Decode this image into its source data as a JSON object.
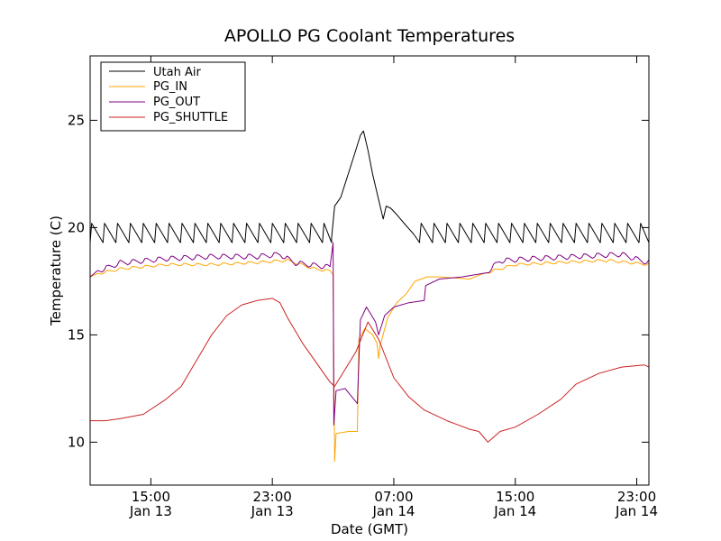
{
  "chart_data": {
    "type": "line",
    "title": "APOLLO PG Coolant Temperatures",
    "xlabel": "Date (GMT)",
    "ylabel": "Temperature (C)",
    "x_unit": "hours since 2014-01-13 11:00 GMT",
    "xlim": [
      0,
      36.8
    ],
    "ylim": [
      8,
      28
    ],
    "grid": false,
    "legend_position": "top-left",
    "y_ticks": [
      10,
      15,
      20,
      25
    ],
    "x_ticks": [
      {
        "x": 4,
        "time": "15:00",
        "date": "Jan 13"
      },
      {
        "x": 12,
        "time": "23:00",
        "date": "Jan 13"
      },
      {
        "x": 20,
        "time": "07:00",
        "date": "Jan 14"
      },
      {
        "x": 28,
        "time": "15:00",
        "date": "Jan 14"
      },
      {
        "x": 36,
        "time": "23:00",
        "date": "Jan 14"
      }
    ],
    "series": [
      {
        "name": "Utah Air",
        "color": "#000000",
        "sawtooth": {
          "x_ranges": [
            [
              0,
              15.9
            ],
            [
              21.7,
              36.8
            ]
          ],
          "period": 0.85,
          "low": 19.3,
          "high": 20.2
        },
        "points": [
          [
            15.9,
            19.5
          ],
          [
            16.1,
            21.0
          ],
          [
            16.5,
            21.4
          ],
          [
            17.0,
            22.5
          ],
          [
            17.4,
            23.4
          ],
          [
            17.8,
            24.3
          ],
          [
            18.0,
            24.5
          ],
          [
            18.3,
            23.6
          ],
          [
            18.6,
            22.5
          ],
          [
            19.0,
            21.3
          ],
          [
            19.3,
            20.4
          ],
          [
            19.5,
            21.0
          ],
          [
            19.8,
            20.9
          ],
          [
            20.2,
            20.6
          ],
          [
            20.8,
            20.1
          ],
          [
            21.3,
            19.7
          ],
          [
            21.7,
            19.4
          ]
        ]
      },
      {
        "name": "PG_IN",
        "color": "#ffa500",
        "wavy": {
          "x_ranges": [
            [
              0.5,
              15.9
            ],
            [
              26.0,
              36.8
            ]
          ],
          "period": 0.85,
          "amplitude": 0.15
        },
        "points": [
          [
            0,
            17.7
          ],
          [
            2,
            18.0
          ],
          [
            5,
            18.2
          ],
          [
            8,
            18.2
          ],
          [
            11,
            18.3
          ],
          [
            13,
            18.4
          ],
          [
            14.8,
            18.0
          ],
          [
            15.8,
            17.9
          ],
          [
            16.0,
            17.8
          ],
          [
            16.1,
            9.1
          ],
          [
            16.2,
            10.4
          ],
          [
            17.0,
            10.5
          ],
          [
            17.6,
            10.5
          ],
          [
            17.7,
            14.8
          ],
          [
            18.1,
            15.3
          ],
          [
            18.6,
            15.0
          ],
          [
            18.9,
            14.6
          ],
          [
            19.0,
            13.9
          ],
          [
            19.1,
            14.5
          ],
          [
            19.6,
            15.8
          ],
          [
            20.2,
            16.5
          ],
          [
            20.8,
            16.9
          ],
          [
            21.4,
            17.5
          ],
          [
            22.2,
            17.7
          ],
          [
            23.0,
            17.7
          ],
          [
            25.0,
            17.6
          ],
          [
            26.0,
            17.8
          ],
          [
            28,
            18.2
          ],
          [
            31,
            18.3
          ],
          [
            34,
            18.4
          ],
          [
            36.8,
            18.2
          ]
        ]
      },
      {
        "name": "PG_OUT",
        "color": "#800080",
        "wavy": {
          "x_ranges": [
            [
              0.5,
              15.9
            ],
            [
              26.0,
              36.8
            ]
          ],
          "period": 0.85,
          "amplitude": 0.3
        },
        "points": [
          [
            0,
            17.7
          ],
          [
            2,
            18.2
          ],
          [
            5,
            18.4
          ],
          [
            8,
            18.5
          ],
          [
            11,
            18.5
          ],
          [
            12.5,
            18.6
          ],
          [
            13.5,
            18.2
          ],
          [
            15.8,
            18.0
          ],
          [
            16.0,
            19.3
          ],
          [
            16.05,
            10.8
          ],
          [
            16.2,
            12.4
          ],
          [
            16.8,
            12.5
          ],
          [
            17.6,
            11.8
          ],
          [
            17.8,
            15.7
          ],
          [
            18.2,
            16.3
          ],
          [
            18.8,
            15.6
          ],
          [
            19.0,
            15.0
          ],
          [
            19.4,
            15.9
          ],
          [
            20.0,
            16.3
          ],
          [
            21.0,
            16.5
          ],
          [
            22.0,
            16.6
          ],
          [
            22.1,
            17.3
          ],
          [
            23.0,
            17.6
          ],
          [
            24.5,
            17.7
          ],
          [
            26.0,
            17.7
          ],
          [
            27.0,
            18.3
          ],
          [
            29,
            18.4
          ],
          [
            32,
            18.5
          ],
          [
            35,
            18.6
          ],
          [
            36.8,
            18.2
          ]
        ]
      },
      {
        "name": "PG_SHUTTLE",
        "color": "#cc2222",
        "points": [
          [
            0,
            11.0
          ],
          [
            1,
            11.0
          ],
          [
            2,
            11.1
          ],
          [
            3.5,
            11.3
          ],
          [
            5,
            12.0
          ],
          [
            6,
            12.6
          ],
          [
            7,
            13.8
          ],
          [
            8,
            15.0
          ],
          [
            9,
            15.9
          ],
          [
            10,
            16.4
          ],
          [
            11,
            16.6
          ],
          [
            12,
            16.7
          ],
          [
            12.5,
            16.5
          ],
          [
            13,
            15.8
          ],
          [
            14,
            14.6
          ],
          [
            15,
            13.6
          ],
          [
            15.8,
            12.8
          ],
          [
            16.1,
            12.6
          ],
          [
            17.5,
            14.2
          ],
          [
            18.3,
            15.6
          ],
          [
            19.0,
            14.8
          ],
          [
            20.0,
            13.0
          ],
          [
            21.0,
            12.1
          ],
          [
            22.0,
            11.5
          ],
          [
            23.5,
            11.0
          ],
          [
            25.0,
            10.6
          ],
          [
            25.6,
            10.5
          ],
          [
            26.2,
            10.0
          ],
          [
            27.0,
            10.5
          ],
          [
            28.0,
            10.7
          ],
          [
            29.5,
            11.3
          ],
          [
            31.0,
            12.0
          ],
          [
            32.0,
            12.7
          ],
          [
            33.5,
            13.2
          ],
          [
            35.0,
            13.5
          ],
          [
            36.5,
            13.6
          ],
          [
            36.8,
            13.5
          ]
        ]
      }
    ]
  }
}
